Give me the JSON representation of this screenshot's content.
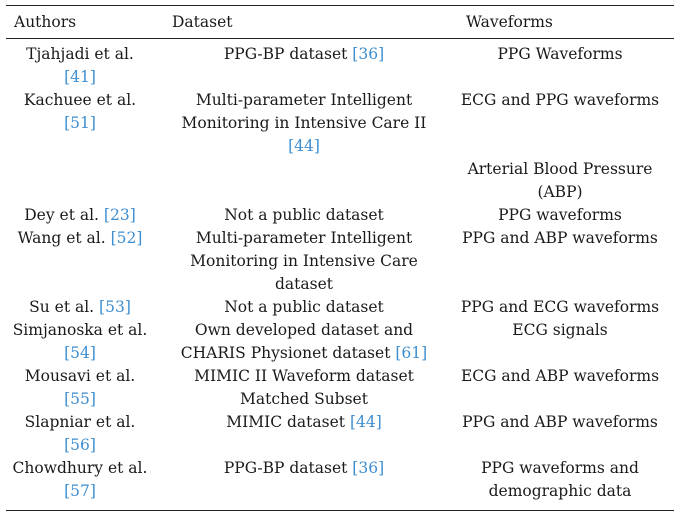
{
  "table": {
    "headers": {
      "authors": "Authors",
      "dataset": "Dataset",
      "waveforms": "Waveforms"
    },
    "rows": [
      {
        "authors": [
          "Tjahjadi et al.",
          "[41]"
        ],
        "dataset": [
          "PPG-BP dataset [36]"
        ],
        "waveforms": [
          "PPG Waveforms"
        ]
      },
      {
        "authors": [
          "Kachuee et al.",
          "[51]"
        ],
        "dataset": [
          "Multi-parameter Intelligent",
          "Monitoring in Intensive Care II",
          "[44]"
        ],
        "waveforms": [
          "ECG and PPG waveforms",
          "",
          "",
          "Arterial Blood Pressure",
          "(ABP)"
        ]
      },
      {
        "authors": [
          "Dey et al. [23]"
        ],
        "dataset": [
          "Not a public dataset"
        ],
        "waveforms": [
          "PPG waveforms"
        ]
      },
      {
        "authors": [
          "Wang et al. [52]"
        ],
        "dataset": [
          "Multi-parameter Intelligent",
          "Monitoring in Intensive Care",
          "dataset"
        ],
        "waveforms": [
          "PPG and ABP waveforms"
        ]
      },
      {
        "authors": [
          "Su et al. [53]"
        ],
        "dataset": [
          "Not a public dataset"
        ],
        "waveforms": [
          "PPG and ECG waveforms"
        ]
      },
      {
        "authors": [
          "Simjanoska et al.",
          "[54]"
        ],
        "dataset": [
          "Own developed dataset and",
          "CHARIS Physionet dataset [61]"
        ],
        "waveforms": [
          "ECG signals"
        ]
      },
      {
        "authors": [
          "Mousavi et al.",
          "[55]"
        ],
        "dataset": [
          "MIMIC II Waveform dataset",
          "Matched Subset"
        ],
        "waveforms": [
          "ECG and ABP waveforms"
        ]
      },
      {
        "authors": [
          "Slapniar et al.",
          "[56]"
        ],
        "dataset": [
          "MIMIC dataset [44]"
        ],
        "waveforms": [
          "PPG and ABP waveforms"
        ]
      },
      {
        "authors": [
          "Chowdhury et al.",
          "[57]"
        ],
        "dataset": [
          "PPG-BP dataset [36]"
        ],
        "waveforms": [
          "PPG waveforms and",
          "demographic data"
        ]
      }
    ]
  }
}
